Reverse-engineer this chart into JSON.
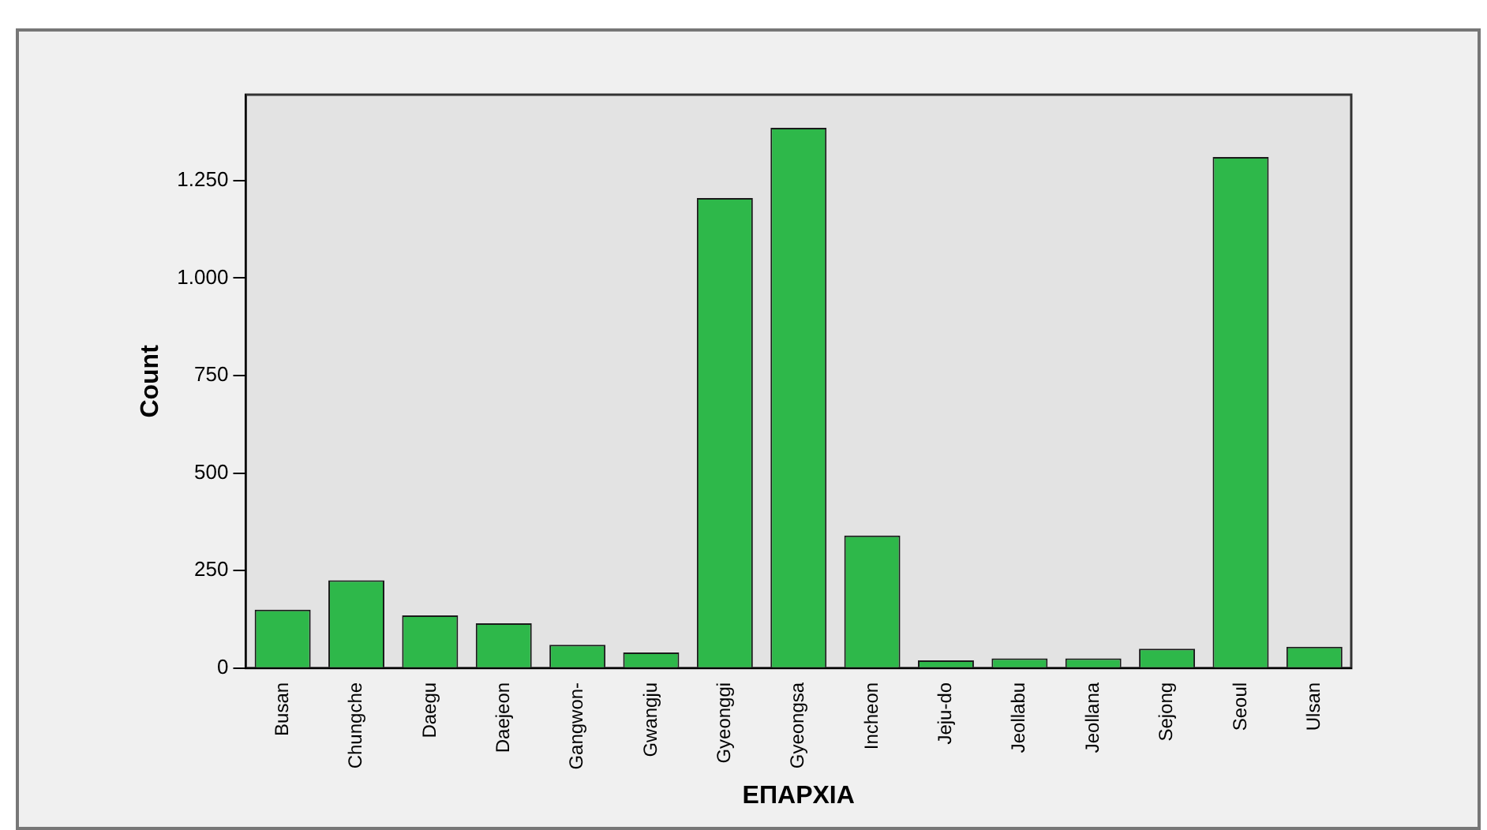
{
  "chart_data": {
    "type": "bar",
    "xlabel": "ΕΠΑΡΧΙΑ",
    "ylabel": "Count",
    "categories": [
      "Busan",
      "Chungche",
      "Daegu",
      "Daejeon",
      "Gangwon-",
      "Gwangju",
      "Gyeonggi",
      "Gyeongsa",
      "Incheon",
      "Jeju-do",
      "Jeollabu",
      "Jeollana",
      "Sejong",
      "Seoul",
      "Ulsan"
    ],
    "values": [
      150,
      225,
      135,
      115,
      60,
      40,
      1205,
      1385,
      340,
      20,
      25,
      25,
      50,
      1310,
      55
    ],
    "color": "#2eb84a",
    "ylim": [
      0,
      1470
    ],
    "yticks": [
      0,
      250,
      500,
      750,
      {
        "value": 1000,
        "label": "1.000"
      },
      {
        "value": 1250,
        "label": "1.250"
      }
    ],
    "grid": false,
    "legend": false
  }
}
